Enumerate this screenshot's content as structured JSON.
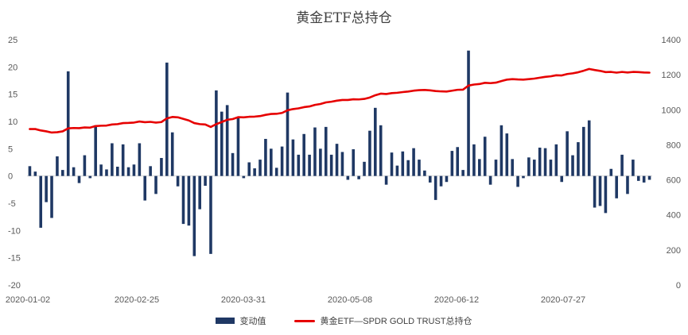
{
  "chart_data": {
    "type": "bar+line",
    "title": "黄金ETF总持仓",
    "categories_labels": [
      "2020-01-02",
      "2020-02-25",
      "2020-03-31",
      "2020-05-08",
      "2020-06-12",
      "2020-07-27"
    ],
    "y_left": {
      "min": -20,
      "max": 25,
      "ticks": [
        -20,
        -15,
        -10,
        -5,
        0,
        5,
        10,
        15,
        20,
        25
      ]
    },
    "y_right": {
      "min": 0,
      "max": 1400,
      "ticks": [
        0,
        200,
        400,
        600,
        800,
        1000,
        1200,
        1400
      ]
    },
    "series": [
      {
        "name": "变动值",
        "type": "bar",
        "axis": "left",
        "color": "#1f3864",
        "values": [
          1.8,
          0.8,
          -9.5,
          -4.8,
          -7.7,
          3.6,
          1.1,
          19.2,
          1.6,
          -1.3,
          3.8,
          -0.4,
          9.3,
          2.1,
          1.2,
          6.0,
          1.7,
          5.8,
          1.6,
          2.1,
          6.0,
          -4.5,
          1.8,
          -3.3,
          3.3,
          20.8,
          8.0,
          -1.9,
          -8.8,
          -9.1,
          -14.7,
          -6.1,
          -1.8,
          -14.3,
          15.7,
          11.8,
          13.0,
          4.2,
          10.6,
          -0.4,
          2.5,
          1.4,
          3.0,
          6.8,
          5.0,
          1.5,
          5.4,
          15.3,
          6.7,
          3.9,
          7.7,
          3.9,
          8.9,
          5.0,
          9.0,
          3.9,
          5.9,
          4.4,
          -0.7,
          4.9,
          -0.6,
          2.6,
          8.3,
          12.5,
          9.3,
          -1.6,
          4.3,
          1.9,
          4.5,
          2.9,
          5.1,
          3.0,
          1.0,
          -1.2,
          -4.4,
          -1.9,
          -1.1,
          4.6,
          5.3,
          1.1,
          23.0,
          5.8,
          3.1,
          7.2,
          -1.6,
          3.0,
          9.3,
          7.8,
          3.1,
          -2.0,
          -0.4,
          3.4,
          3.0,
          5.2,
          5.1,
          3.0,
          5.8,
          -1.1,
          8.2,
          3.8,
          6.2,
          9.0,
          10.2,
          -5.8,
          -5.5,
          -6.8,
          1.3,
          -4.1,
          3.9,
          -3.3,
          3.0,
          -0.9,
          -1.2,
          -0.7
        ]
      },
      {
        "name": "黄金ETF—SPDR GOLD TRUST总持仓",
        "type": "line",
        "axis": "right",
        "color": "#e60000",
        "values": [
          890,
          890,
          882,
          877,
          870,
          872,
          877,
          894,
          896,
          895,
          899,
          898,
          907,
          909,
          910,
          916,
          918,
          924,
          925,
          927,
          933,
          929,
          931,
          927,
          930,
          951,
          959,
          957,
          948,
          939,
          924,
          918,
          916,
          902,
          918,
          930,
          943,
          947,
          958,
          957,
          960,
          961,
          964,
          971,
          976,
          977,
          982,
          997,
          1004,
          1008,
          1015,
          1019,
          1028,
          1033,
          1042,
          1046,
          1052,
          1056,
          1056,
          1060,
          1059,
          1062,
          1070,
          1083,
          1092,
          1090,
          1095,
          1097,
          1101,
          1104,
          1109,
          1112,
          1113,
          1111,
          1107,
          1105,
          1104,
          1109,
          1114,
          1115,
          1138,
          1144,
          1147,
          1154,
          1152,
          1155,
          1164,
          1172,
          1175,
          1173,
          1172,
          1175,
          1178,
          1183,
          1188,
          1191,
          1197,
          1196,
          1204,
          1208,
          1214,
          1223,
          1233,
          1227,
          1222,
          1215,
          1216,
          1212,
          1216,
          1213,
          1216,
          1215,
          1213,
          1212
        ]
      }
    ],
    "legend_position": "bottom",
    "grid": false
  }
}
